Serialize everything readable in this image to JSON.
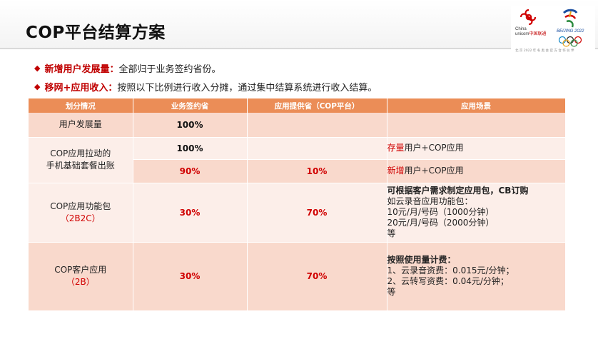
{
  "slide": {
    "title": "COP平台结算方案"
  },
  "logos": {
    "unicom_en1": "China",
    "unicom_en2": "unicom",
    "unicom_cn": "中国联通",
    "beijing": "BEIJING 2022",
    "sponsor_line": "北 京 2022 年 冬 奥 会 官 方 合 作 伙 伴"
  },
  "bullets": [
    {
      "label": "新增用户发展量：",
      "text": "全部归于业务签约省份。"
    },
    {
      "label": "移网+应用收入：",
      "text": "按照以下比例进行收入分摊，通过集中结算系统进行收入结算。"
    }
  ],
  "table": {
    "headers": [
      "划分情况",
      "业务签约省",
      "应用提供省（COP平台）",
      "应用场景"
    ],
    "rows": {
      "r1": {
        "category": "用户发展量",
        "sign": "100%",
        "provider": "",
        "scene": ""
      },
      "r2": {
        "category_line1": "COP应用拉动的",
        "category_line2": "手机基础套餐出账",
        "sign": "100%",
        "provider": "",
        "scene_hl": "存量",
        "scene_rest": "用户+COP应用"
      },
      "r3": {
        "sign": "90%",
        "provider": "10%",
        "scene_hl": "新增",
        "scene_rest": "用户+COP应用"
      },
      "r4": {
        "category_line1": "COP应用功能包",
        "category_line2": "（2B2C）",
        "sign": "30%",
        "provider": "70%",
        "scene_lines": [
          "可根据客户需求制定应用包，CB订购",
          "如云录音应用功能包：",
          "10元/月/号码（1000分钟）",
          "20元/月/号码（2000分钟）",
          "等"
        ]
      },
      "r5": {
        "category_line1": "COP客户应用",
        "category_line2": "（2B）",
        "sign": "30%",
        "provider": "70%",
        "scene_lines": [
          "按照使用量计费：",
          "1、云录音资费：0.015元/分钟；",
          "2、云转写资费：0.04元/分钟；",
          "等"
        ]
      }
    }
  },
  "colors": {
    "accent_red": "#c00000",
    "header_orange": "#eb8d57",
    "row_dark": "#f9d9cc",
    "row_light": "#fceee9"
  }
}
